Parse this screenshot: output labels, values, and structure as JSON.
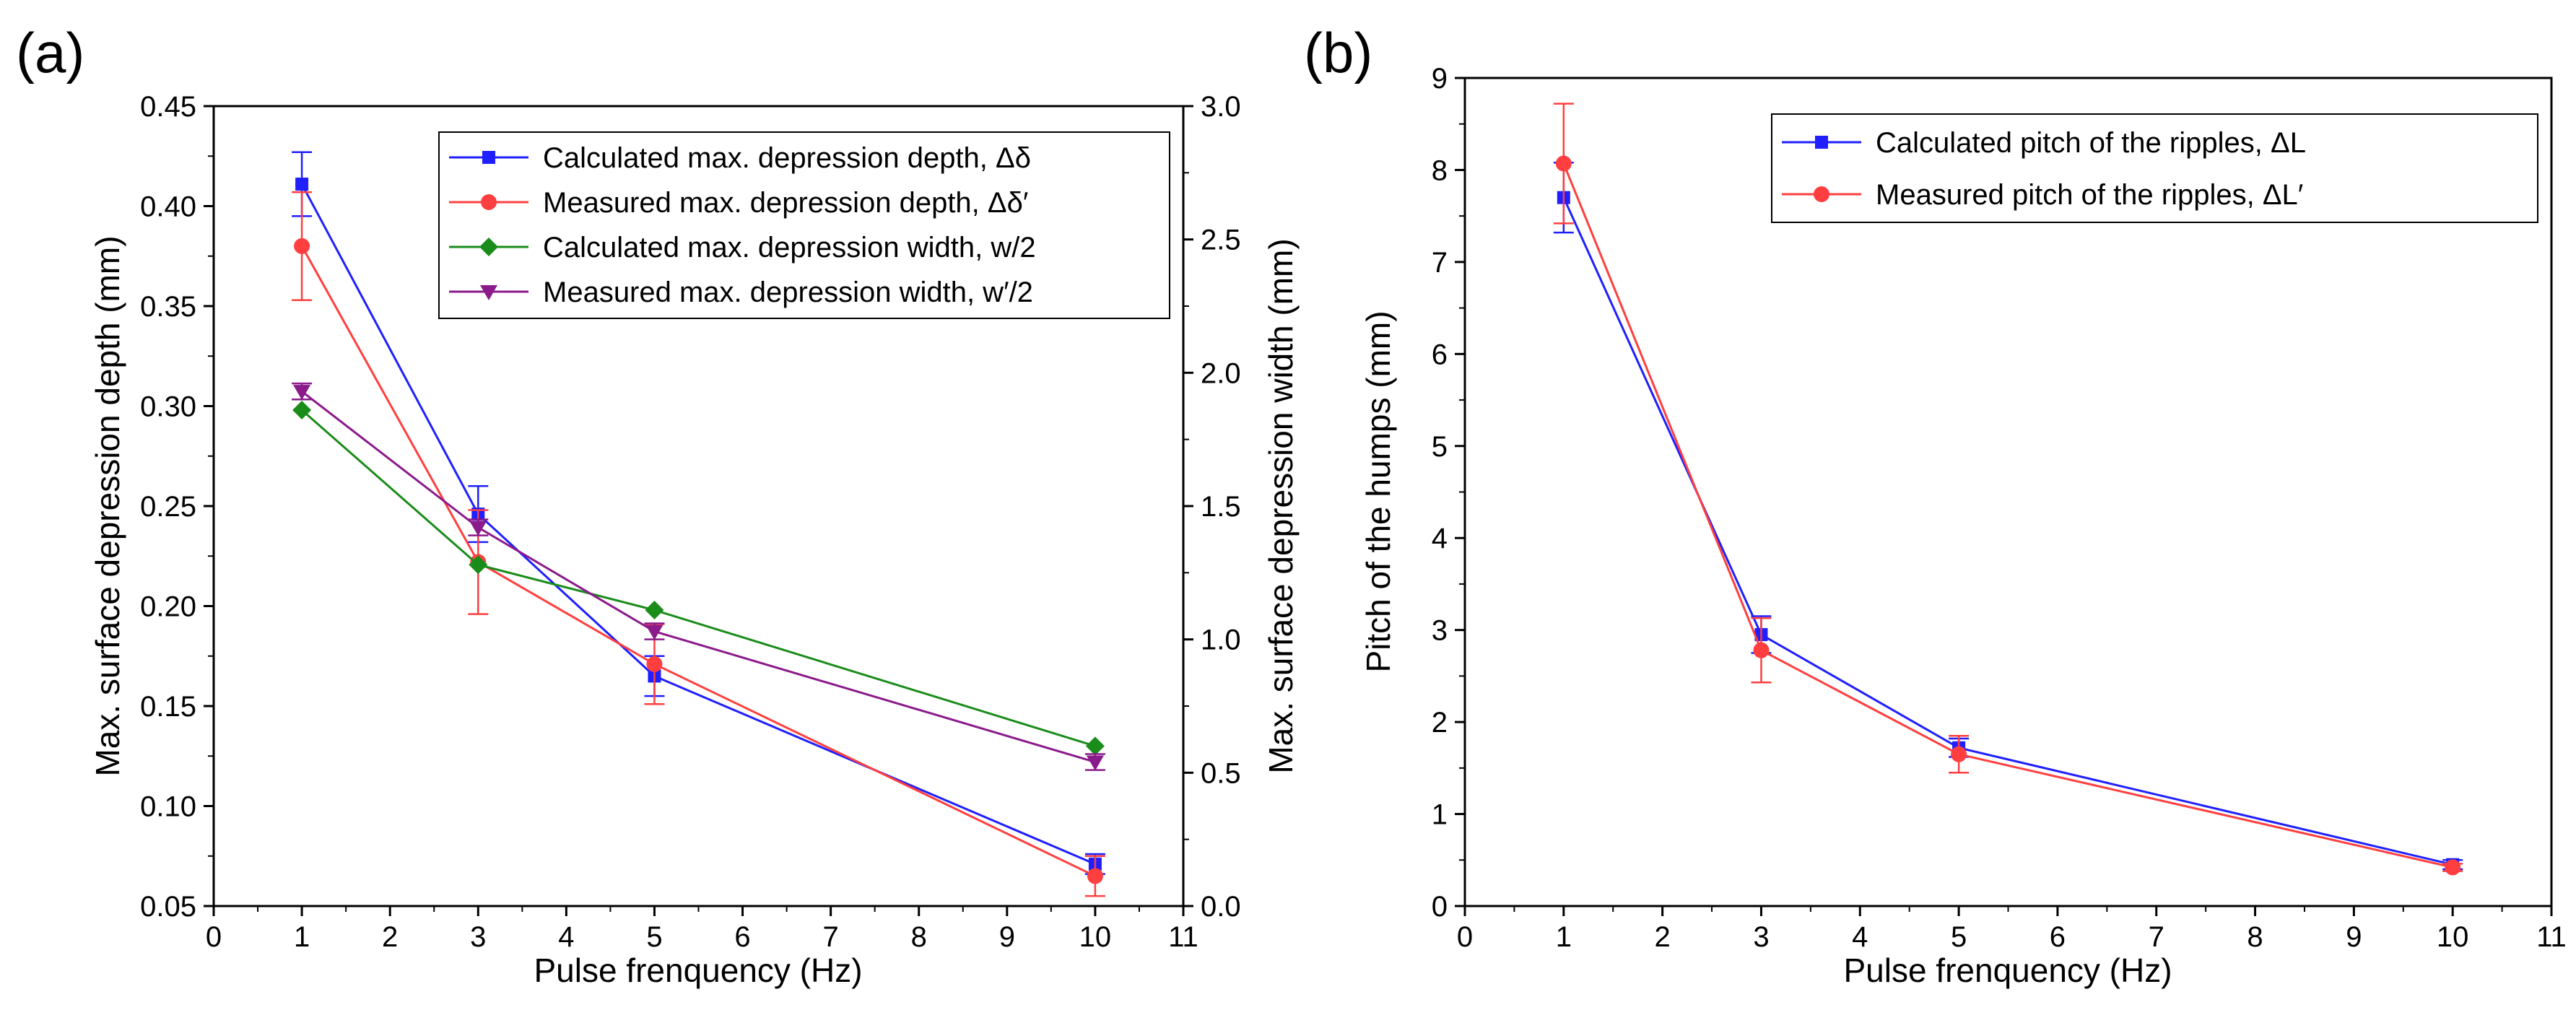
{
  "chart_data": [
    {
      "panel_label": "(a)",
      "type": "line",
      "xlabel": "Pulse frenquency (Hz)",
      "ylabel": "Max. surface depression depth (mm)",
      "y2label": "Max. surface depression width (mm)",
      "xlim": [
        0,
        11
      ],
      "ylim": [
        0.05,
        0.45
      ],
      "y2lim": [
        0.0,
        3.0
      ],
      "xticks": [
        "0",
        "1",
        "2",
        "3",
        "4",
        "5",
        "6",
        "7",
        "8",
        "9",
        "10",
        "11"
      ],
      "yticks": [
        "0.05",
        "0.10",
        "0.15",
        "0.20",
        "0.25",
        "0.30",
        "0.35",
        "0.40",
        "0.45"
      ],
      "y2ticks": [
        "0.0",
        "0.5",
        "1.0",
        "1.5",
        "2.0",
        "2.5",
        "3.0"
      ],
      "legend_position": "top-right",
      "grid": false,
      "x": [
        1,
        3,
        5,
        10
      ],
      "series": [
        {
          "name": "Calculated max. depression depth, Δδ",
          "axis": "left",
          "color": "#1f1fff",
          "marker": "square",
          "values": [
            0.411,
            0.246,
            0.165,
            0.071
          ],
          "errors": [
            0.016,
            0.014,
            0.01,
            0.005
          ]
        },
        {
          "name": "Measured max. depression depth, Δδ′",
          "axis": "left",
          "color": "#ff3f3f",
          "marker": "circle",
          "values": [
            0.38,
            0.222,
            0.171,
            0.065
          ],
          "errors": [
            0.027,
            0.026,
            0.02,
            0.01
          ]
        },
        {
          "name": "Calculated max. depression width, w/2",
          "axis": "right",
          "color": "#1a8c1a",
          "marker": "diamond",
          "values": [
            1.86,
            1.28,
            1.11,
            0.6
          ],
          "errors": [
            0,
            0,
            0,
            0
          ]
        },
        {
          "name": "Measured max. depression width, w′/2",
          "axis": "right",
          "color": "#8b1a8b",
          "marker": "triangle-down",
          "values": [
            1.93,
            1.42,
            1.03,
            0.54
          ],
          "errors": [
            0.03,
            0.03,
            0.03,
            0.03
          ]
        }
      ]
    },
    {
      "panel_label": "(b)",
      "type": "line",
      "xlabel": "Pulse frenquency (Hz)",
      "ylabel": "Pitch of the humps (mm)",
      "xlim": [
        0,
        11
      ],
      "ylim": [
        0,
        9
      ],
      "xticks": [
        "0",
        "1",
        "2",
        "3",
        "4",
        "5",
        "6",
        "7",
        "8",
        "9",
        "10",
        "11"
      ],
      "yticks": [
        "0",
        "1",
        "2",
        "3",
        "4",
        "5",
        "6",
        "7",
        "8",
        "9"
      ],
      "legend_position": "top-right",
      "grid": false,
      "x": [
        1,
        3,
        5,
        10
      ],
      "series": [
        {
          "name": "Calculated pitch of the ripples, ΔL",
          "axis": "left",
          "color": "#1f1fff",
          "marker": "square",
          "values": [
            7.7,
            2.95,
            1.72,
            0.45
          ],
          "errors": [
            0.38,
            0.2,
            0.1,
            0.05
          ]
        },
        {
          "name": "Measured pitch of the ripples, ΔL′",
          "axis": "left",
          "color": "#ff3f3f",
          "marker": "circle",
          "values": [
            8.07,
            2.78,
            1.65,
            0.42
          ],
          "errors": [
            0.65,
            0.35,
            0.2,
            0.04
          ]
        }
      ]
    }
  ]
}
